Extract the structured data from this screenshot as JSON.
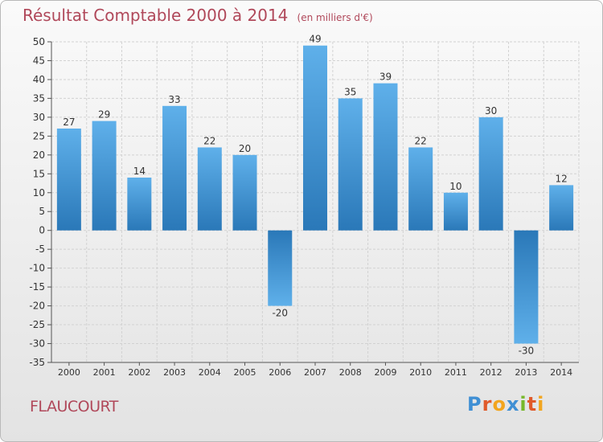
{
  "header": {
    "title": "Résultat Comptable 2000 à 2014",
    "subtitle": "(en milliers d'€)"
  },
  "commune": "FLAUCOURT",
  "logo": {
    "text": "Proxiti",
    "letters": [
      "P",
      "r",
      "o",
      "x",
      "i",
      "t",
      "i"
    ],
    "colors": [
      "#3f8fd4",
      "#e05a2a",
      "#f2a51e",
      "#3f8fd4",
      "#77b82a",
      "#e05a2a",
      "#f2a51e"
    ]
  },
  "chart_data": {
    "type": "bar",
    "categories": [
      "2000",
      "2001",
      "2002",
      "2003",
      "2004",
      "2005",
      "2006",
      "2007",
      "2008",
      "2009",
      "2010",
      "2011",
      "2012",
      "2013",
      "2014"
    ],
    "values": [
      27,
      29,
      14,
      33,
      22,
      20,
      -20,
      49,
      35,
      39,
      22,
      10,
      30,
      -30,
      12
    ],
    "title": "Résultat Comptable 2000 à 2014",
    "subtitle": "(en milliers d'€)",
    "xlabel": "",
    "ylabel": "",
    "ylim": [
      -35,
      50
    ],
    "ytick_step": 5,
    "grid": true,
    "bar_color_light": "#5fb0ea",
    "bar_color_dark": "#2a78b8",
    "title_color": "#b0485a"
  }
}
